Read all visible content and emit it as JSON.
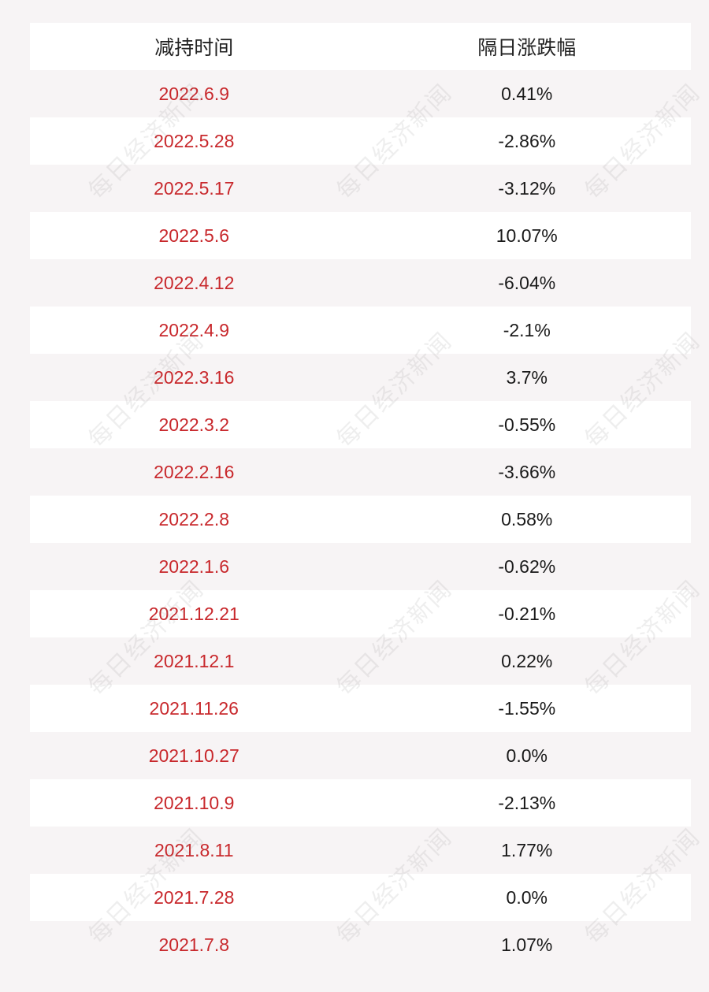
{
  "header": {
    "col1": "减持时间",
    "col2": "隔日涨跌幅"
  },
  "rows": [
    {
      "date": "2022.6.9",
      "change": "0.41%"
    },
    {
      "date": "2022.5.28",
      "change": "-2.86%"
    },
    {
      "date": "2022.5.17",
      "change": "-3.12%"
    },
    {
      "date": "2022.5.6",
      "change": "10.07%"
    },
    {
      "date": "2022.4.12",
      "change": "-6.04%"
    },
    {
      "date": "2022.4.9",
      "change": "-2.1%"
    },
    {
      "date": "2022.3.16",
      "change": "3.7%"
    },
    {
      "date": "2022.3.2",
      "change": "-0.55%"
    },
    {
      "date": "2022.2.16",
      "change": "-3.66%"
    },
    {
      "date": "2022.2.8",
      "change": "0.58%"
    },
    {
      "date": "2022.1.6",
      "change": "-0.62%"
    },
    {
      "date": "2021.12.21",
      "change": "-0.21%"
    },
    {
      "date": "2021.12.1",
      "change": "0.22%"
    },
    {
      "date": "2021.11.26",
      "change": "-1.55%"
    },
    {
      "date": "2021.10.27",
      "change": "0.0%"
    },
    {
      "date": "2021.10.9",
      "change": "-2.13%"
    },
    {
      "date": "2021.8.11",
      "change": "1.77%"
    },
    {
      "date": "2021.7.28",
      "change": "0.0%"
    },
    {
      "date": "2021.7.8",
      "change": "1.07%"
    }
  ],
  "watermark": "每日经济新闻",
  "colors": {
    "date": "#c8282c",
    "change": "#1a1a1a",
    "background": "#f7f4f5"
  }
}
